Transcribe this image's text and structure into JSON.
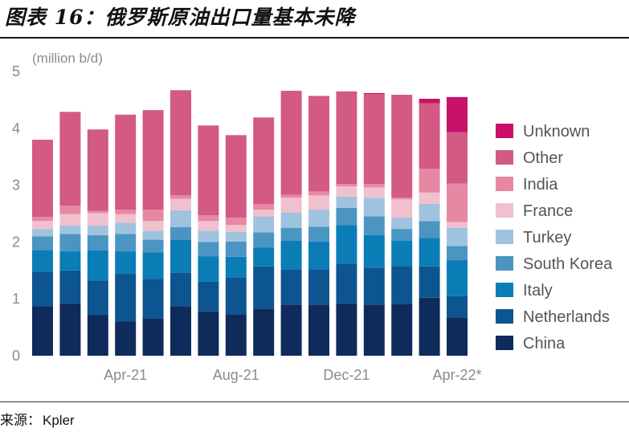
{
  "header": {
    "title": "图表 16：俄罗斯原油出口量基本未降"
  },
  "footer": {
    "source_label": "来源：",
    "source_value": "Kpler"
  },
  "chart_data": {
    "type": "bar",
    "stacked": true,
    "ylabel": "(million b/d)",
    "ylim": [
      0,
      5
    ],
    "yticks": [
      0,
      1,
      2,
      3,
      4,
      5
    ],
    "grid": false,
    "legend_position": "right",
    "x_tick_labels": [
      {
        "index": 3,
        "label": "Apr-21"
      },
      {
        "index": 7,
        "label": "Aug-21"
      },
      {
        "index": 11,
        "label": "Dec-21"
      },
      {
        "index": 15,
        "label": "Apr-22*"
      }
    ],
    "categories": [
      "Jan-21",
      "Feb-21",
      "Mar-21",
      "Apr-21",
      "May-21",
      "Jun-21",
      "Jul-21",
      "Aug-21",
      "Sep-21",
      "Oct-21",
      "Nov-21",
      "Dec-21",
      "Jan-22",
      "Feb-22",
      "Mar-22",
      "Apr-22*"
    ],
    "series": [
      {
        "name": "China",
        "color": "#0f2b5c",
        "values": [
          0.87,
          0.92,
          0.72,
          0.6,
          0.65,
          0.87,
          0.78,
          0.73,
          0.83,
          0.9,
          0.9,
          0.92,
          0.9,
          0.91,
          1.02,
          0.67
        ]
      },
      {
        "name": "Netherlands",
        "color": "#0d5590",
        "values": [
          0.61,
          0.58,
          0.6,
          0.84,
          0.7,
          0.59,
          0.52,
          0.65,
          0.74,
          0.62,
          0.62,
          0.7,
          0.65,
          0.67,
          0.55,
          0.38
        ]
      },
      {
        "name": "Italy",
        "color": "#0a7db6",
        "values": [
          0.38,
          0.34,
          0.53,
          0.4,
          0.47,
          0.58,
          0.45,
          0.36,
          0.33,
          0.5,
          0.49,
          0.68,
          0.57,
          0.44,
          0.5,
          0.63
        ]
      },
      {
        "name": "South Korea",
        "color": "#4b95c3",
        "values": [
          0.24,
          0.3,
          0.27,
          0.3,
          0.22,
          0.22,
          0.25,
          0.27,
          0.27,
          0.23,
          0.26,
          0.3,
          0.33,
          0.21,
          0.3,
          0.25
        ]
      },
      {
        "name": "Turkey",
        "color": "#9fc3de",
        "values": [
          0.13,
          0.15,
          0.17,
          0.2,
          0.16,
          0.3,
          0.2,
          0.17,
          0.28,
          0.27,
          0.3,
          0.2,
          0.33,
          0.2,
          0.3,
          0.32
        ]
      },
      {
        "name": "France",
        "color": "#f1c0cd",
        "values": [
          0.14,
          0.2,
          0.22,
          0.15,
          0.17,
          0.2,
          0.17,
          0.12,
          0.12,
          0.26,
          0.25,
          0.18,
          0.18,
          0.32,
          0.2,
          0.1
        ]
      },
      {
        "name": "India",
        "color": "#e688a4",
        "values": [
          0.07,
          0.15,
          0.04,
          0.08,
          0.2,
          0.06,
          0.1,
          0.13,
          0.1,
          0.05,
          0.07,
          0.04,
          0.06,
          0.03,
          0.42,
          0.68
        ]
      },
      {
        "name": "Other",
        "color": "#d25a84",
        "values": [
          1.36,
          1.65,
          1.43,
          1.67,
          1.75,
          1.85,
          1.58,
          1.45,
          1.52,
          1.83,
          1.68,
          1.63,
          1.58,
          1.81,
          1.15,
          0.9
        ]
      },
      {
        "name": "Unknown",
        "color": "#c8106a",
        "values": [
          0,
          0,
          0,
          0,
          0,
          0,
          0,
          0,
          0,
          0,
          0,
          0,
          0.02,
          0,
          0.08,
          0.62
        ]
      }
    ]
  }
}
